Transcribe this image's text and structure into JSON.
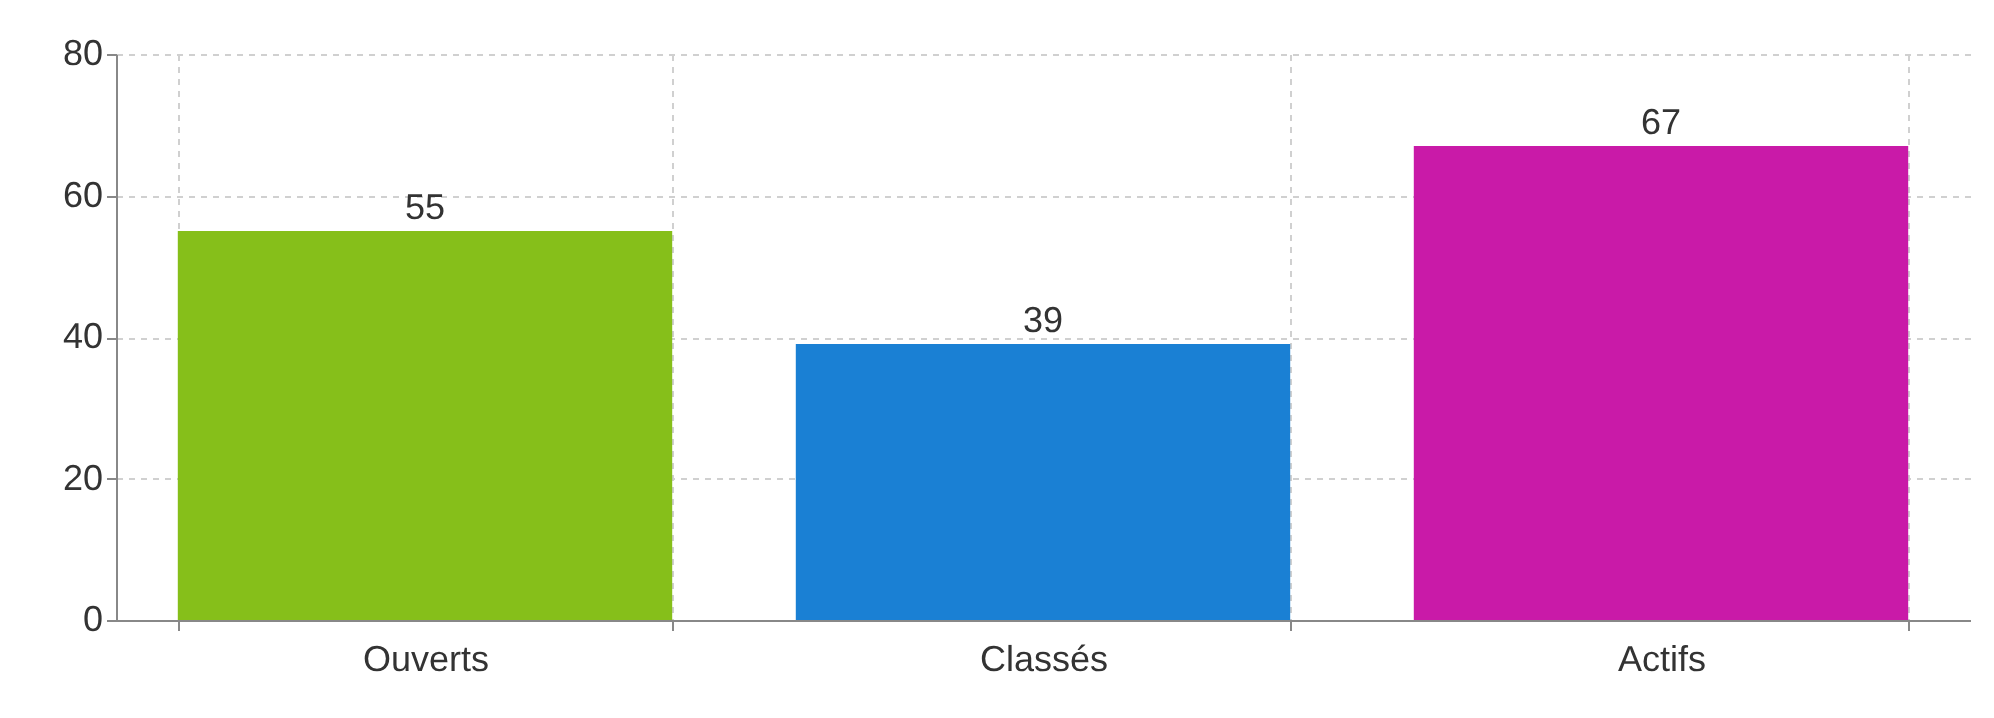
{
  "chart_data": {
    "type": "bar",
    "categories": [
      "Ouverts",
      "Classés",
      "Actifs"
    ],
    "values": [
      55,
      39,
      67
    ],
    "colors": [
      "#86bf1a",
      "#1a80d4",
      "#c91aa8"
    ],
    "ylim": [
      0,
      80
    ],
    "yticks": [
      0,
      20,
      40,
      60,
      80
    ],
    "grid": true,
    "data_labels": true
  }
}
